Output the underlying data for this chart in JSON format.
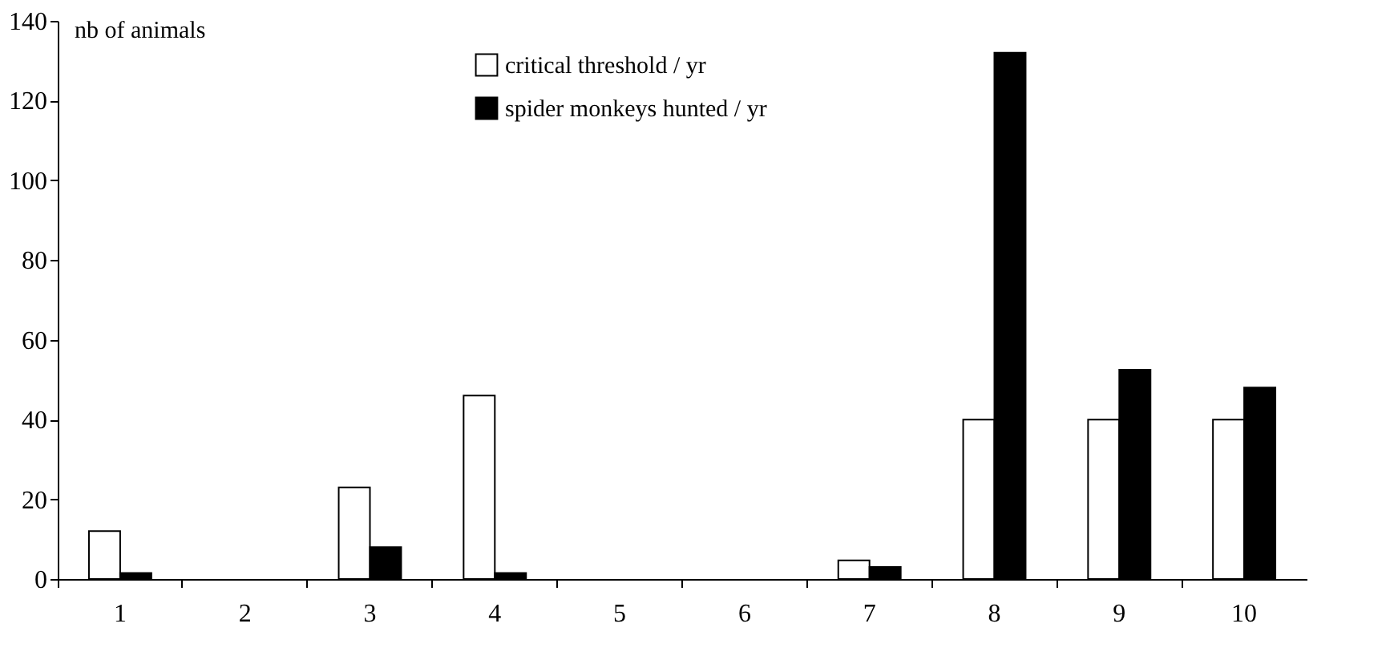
{
  "chart_data": {
    "type": "bar",
    "ylabel": "nb of animals",
    "categories": [
      "1",
      "2",
      "3",
      "4",
      "5",
      "6",
      "7",
      "8",
      "9",
      "10"
    ],
    "series": [
      {
        "name": "critical threshold / yr",
        "color": "#ffffff",
        "values": [
          12,
          null,
          23,
          46,
          null,
          null,
          4.7,
          40,
          40,
          40
        ]
      },
      {
        "name": "spider monkeys hunted / yr",
        "color": "#000000",
        "values": [
          1.5,
          null,
          8,
          1.5,
          null,
          null,
          3,
          132,
          52.5,
          48
        ]
      }
    ],
    "ylim": [
      0,
      140
    ],
    "yticks": [
      0,
      20,
      40,
      60,
      80,
      100,
      120,
      140
    ],
    "grid": false,
    "legend": "top"
  }
}
